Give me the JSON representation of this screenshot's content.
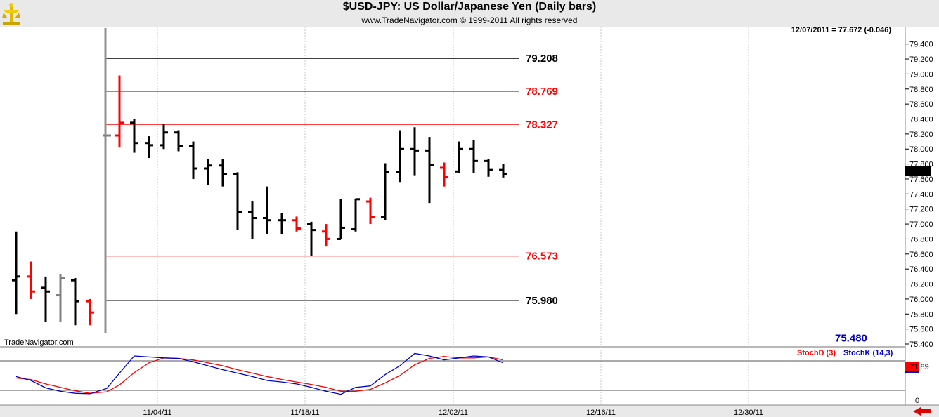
{
  "header": {
    "title": "$USD-JPY:  US Dollar/Japanese Yen  (Daily bars)",
    "copyright": "www.TradeNavigator.com © 1999-2011 All rights reserved",
    "watermark": "TradeNavigator.com"
  },
  "chart_data": {
    "type": "ohlc",
    "readout": "12/07/2011 = 77.672 (-0.046)",
    "current_price": "77.672",
    "ylim": [
      75.4,
      79.5
    ],
    "price_ticks": [
      "79.400",
      "79.200",
      "79.000",
      "78.800",
      "78.600",
      "78.400",
      "78.200",
      "78.000",
      "77.800",
      "77.600",
      "77.400",
      "77.200",
      "77.000",
      "76.800",
      "76.600",
      "76.400",
      "76.200",
      "76.000",
      "75.800",
      "75.600",
      "75.400"
    ],
    "x_labels": [
      "11/04/11",
      "11/18/11",
      "12/02/11",
      "12/16/11",
      "12/30/11"
    ],
    "colors": {
      "up": "#000000",
      "down": "#ff0000",
      "neutral": "#808080",
      "stochD": "#ff0000",
      "stochK": "#0000cc",
      "level_black": "#000000",
      "level_red": "#ff0000",
      "level_blue": "#0000cc"
    },
    "bars": [
      {
        "o": 76.25,
        "h": 76.9,
        "l": 75.8,
        "c": 76.3,
        "color": "up"
      },
      {
        "o": 76.3,
        "h": 76.5,
        "l": 76.0,
        "c": 76.1,
        "color": "down"
      },
      {
        "o": 76.15,
        "h": 76.3,
        "l": 75.7,
        "c": 76.1,
        "color": "up"
      },
      {
        "o": 76.05,
        "h": 76.33,
        "l": 75.7,
        "c": 76.28,
        "color": "neutral"
      },
      {
        "o": 76.25,
        "h": 76.28,
        "l": 75.65,
        "c": 75.97,
        "color": "up"
      },
      {
        "o": 75.97,
        "h": 76.0,
        "l": 75.65,
        "c": 75.82,
        "color": "down"
      },
      {
        "o": 78.18,
        "h": 78.18,
        "l": 78.18,
        "c": 78.18,
        "color": "neutral"
      },
      {
        "o": 78.18,
        "h": 78.98,
        "l": 78.02,
        "c": 78.35,
        "color": "down"
      },
      {
        "o": 78.35,
        "h": 78.4,
        "l": 77.95,
        "c": 78.08,
        "color": "up"
      },
      {
        "o": 78.08,
        "h": 78.17,
        "l": 77.88,
        "c": 78.05,
        "color": "up"
      },
      {
        "o": 78.05,
        "h": 78.33,
        "l": 78.0,
        "c": 78.22,
        "color": "up"
      },
      {
        "o": 78.22,
        "h": 78.25,
        "l": 77.97,
        "c": 78.04,
        "color": "up"
      },
      {
        "o": 78.04,
        "h": 78.1,
        "l": 77.6,
        "c": 77.74,
        "color": "up"
      },
      {
        "o": 77.74,
        "h": 77.87,
        "l": 77.52,
        "c": 77.78,
        "color": "up"
      },
      {
        "o": 77.78,
        "h": 77.87,
        "l": 77.5,
        "c": 77.67,
        "color": "up"
      },
      {
        "o": 77.67,
        "h": 77.69,
        "l": 76.92,
        "c": 77.16,
        "color": "up"
      },
      {
        "o": 77.16,
        "h": 77.3,
        "l": 76.8,
        "c": 77.08,
        "color": "up"
      },
      {
        "o": 77.08,
        "h": 77.5,
        "l": 76.87,
        "c": 77.05,
        "color": "up"
      },
      {
        "o": 77.05,
        "h": 77.15,
        "l": 76.86,
        "c": 77.05,
        "color": "up"
      },
      {
        "o": 77.05,
        "h": 77.1,
        "l": 76.9,
        "c": 76.94,
        "color": "down"
      },
      {
        "o": 77.0,
        "h": 77.03,
        "l": 76.58,
        "c": 76.92,
        "color": "up"
      },
      {
        "o": 76.9,
        "h": 77.0,
        "l": 76.7,
        "c": 76.8,
        "color": "down"
      },
      {
        "o": 76.8,
        "h": 77.33,
        "l": 76.8,
        "c": 76.95,
        "color": "up"
      },
      {
        "o": 76.93,
        "h": 77.34,
        "l": 76.9,
        "c": 77.33,
        "color": "up"
      },
      {
        "o": 77.3,
        "h": 77.35,
        "l": 77.0,
        "c": 77.09,
        "color": "down"
      },
      {
        "o": 77.09,
        "h": 77.81,
        "l": 77.05,
        "c": 77.69,
        "color": "up"
      },
      {
        "o": 77.69,
        "h": 78.25,
        "l": 77.56,
        "c": 78.0,
        "color": "up"
      },
      {
        "o": 78.0,
        "h": 78.29,
        "l": 77.65,
        "c": 77.98,
        "color": "up"
      },
      {
        "o": 77.98,
        "h": 78.16,
        "l": 77.28,
        "c": 77.79,
        "color": "up"
      },
      {
        "o": 77.75,
        "h": 77.82,
        "l": 77.5,
        "c": 77.63,
        "color": "down"
      },
      {
        "o": 77.7,
        "h": 78.1,
        "l": 77.68,
        "c": 78.0,
        "color": "up"
      },
      {
        "o": 78.0,
        "h": 78.12,
        "l": 77.68,
        "c": 77.84,
        "color": "up"
      },
      {
        "o": 77.84,
        "h": 77.87,
        "l": 77.63,
        "c": 77.72,
        "color": "up"
      },
      {
        "o": 77.72,
        "h": 77.8,
        "l": 77.62,
        "c": 77.67,
        "color": "up"
      }
    ],
    "levels": [
      {
        "label": "79.208",
        "value": 79.208,
        "color": "level_black"
      },
      {
        "label": "78.769",
        "value": 78.769,
        "color": "level_red"
      },
      {
        "label": "78.327",
        "value": 78.327,
        "color": "level_red"
      },
      {
        "label": "76.573",
        "value": 76.573,
        "color": "level_red"
      },
      {
        "label": "75.980",
        "value": 75.98,
        "color": "level_black"
      },
      {
        "label": "75.480",
        "value": 75.48,
        "color": "level_blue"
      }
    ],
    "stochastic": {
      "legend_d": "StochD (3)",
      "legend_k": "StochK (14,3)",
      "current": "71.89",
      "zero_label": "0",
      "ylim": [
        0,
        100
      ],
      "upper_level": 80,
      "lower_level": 20,
      "k": [
        48,
        40,
        25,
        18,
        14,
        13,
        24,
        55,
        90,
        88,
        86,
        85,
        78,
        70,
        62,
        55,
        48,
        40,
        37,
        33,
        26,
        18,
        12,
        26,
        29,
        52,
        70,
        95,
        90,
        82,
        86,
        90,
        88,
        76
      ],
      "d": [
        45,
        42,
        33,
        26,
        19,
        14,
        17,
        31,
        56,
        76,
        86,
        85,
        82,
        76,
        70,
        62,
        55,
        48,
        42,
        37,
        32,
        26,
        18,
        18,
        22,
        35,
        50,
        72,
        85,
        89,
        86,
        86,
        88,
        82
      ]
    }
  }
}
